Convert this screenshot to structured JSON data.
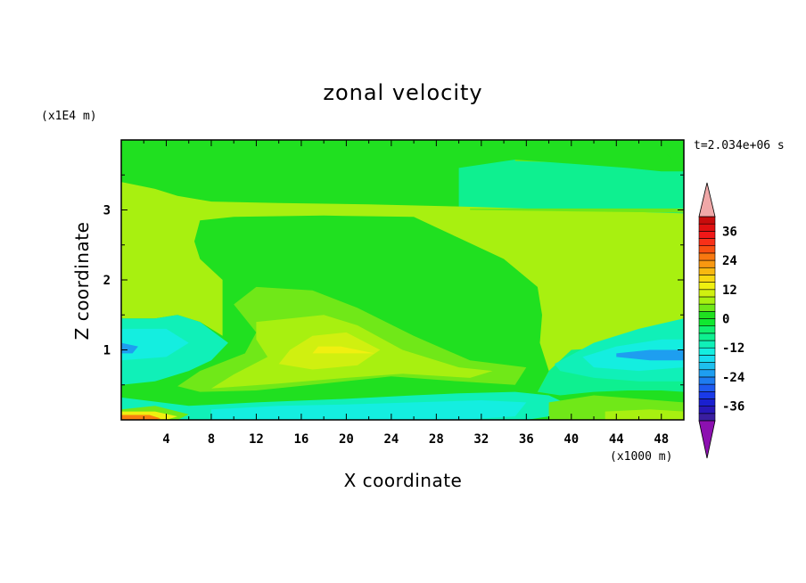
{
  "chart_data": {
    "type": "heatmap",
    "title": "zonal velocity",
    "xlabel": "X coordinate",
    "ylabel": "Z coordinate",
    "x_unit_label": "(x1000 m)",
    "y_unit_label": "(x1E4 m)",
    "time_label": "t=2.034e+06 s",
    "xlim": [
      0,
      50
    ],
    "ylim": [
      0,
      4
    ],
    "x_ticks": [
      4,
      8,
      12,
      16,
      20,
      24,
      28,
      32,
      36,
      40,
      44,
      48
    ],
    "y_ticks": [
      1,
      2,
      3
    ],
    "colorbar": {
      "levels": [
        -42,
        -39,
        -36,
        -33,
        -30,
        -27,
        -24,
        -21,
        -18,
        -15,
        -12,
        -9,
        -6,
        -3,
        0,
        3,
        6,
        9,
        12,
        15,
        18,
        21,
        24,
        27,
        30,
        33,
        36,
        39,
        42
      ],
      "colors": [
        "#3a1ea0",
        "#2818b8",
        "#1a20d0",
        "#1a3ae8",
        "#1e5af0",
        "#1e7cf0",
        "#1e9ef0",
        "#1ec0ee",
        "#18dcf0",
        "#14eee0",
        "#10f0b8",
        "#0ef090",
        "#10f070",
        "#10e830",
        "#20e020",
        "#70e818",
        "#a8f010",
        "#d0f010",
        "#f0f010",
        "#f8d810",
        "#f8b810",
        "#f89810",
        "#f87810",
        "#f85010",
        "#f83018",
        "#f01818",
        "#e01010",
        "#c80c0c"
      ],
      "labels": [
        "-36",
        "-24",
        "-12",
        "0",
        "12",
        "24",
        "36"
      ],
      "label_values": [
        -36,
        -24,
        -12,
        0,
        12,
        24,
        36
      ],
      "under_color": "#8c10b0",
      "over_color": "#f0a8a8"
    },
    "field_regions": [
      {
        "level": 2,
        "polygon": [
          [
            0,
            3.4
          ],
          [
            4,
            3.3
          ],
          [
            6,
            3.2
          ],
          [
            10,
            3.15
          ],
          [
            20,
            3.12
          ],
          [
            30,
            3.05
          ],
          [
            40,
            3.0
          ],
          [
            50,
            2.95
          ],
          [
            50,
            0.95
          ],
          [
            45,
            1.05
          ],
          [
            40,
            1.0
          ],
          [
            38,
            0.7
          ],
          [
            37,
            0.4
          ],
          [
            40,
            0.32
          ],
          [
            44,
            0.3
          ],
          [
            48,
            0.3
          ],
          [
            50,
            0.25
          ],
          [
            50,
            0
          ],
          [
            0,
            0
          ]
        ]
      },
      {
        "level": 1,
        "polygon": [
          [
            35,
            3.7
          ],
          [
            45,
            3.65
          ],
          [
            50,
            3.6
          ],
          [
            50,
            4
          ],
          [
            35,
            4
          ]
        ]
      },
      {
        "level": 1,
        "polygon": [
          [
            31,
            3.0
          ],
          [
            40,
            2.98
          ],
          [
            50,
            2.96
          ],
          [
            50,
            3.02
          ],
          [
            40,
            3.02
          ],
          [
            31,
            3.02
          ]
        ]
      },
      {
        "level": 0,
        "polygon": [
          [
            0,
            3.4
          ],
          [
            3,
            3.3
          ],
          [
            5,
            3.2
          ],
          [
            8,
            3.12
          ],
          [
            14,
            3.1
          ],
          [
            22,
            3.08
          ],
          [
            30,
            3.05
          ],
          [
            30,
            3.6
          ],
          [
            35,
            3.72
          ],
          [
            45,
            3.6
          ],
          [
            48,
            3.55
          ],
          [
            50,
            3.55
          ],
          [
            50,
            4
          ],
          [
            0,
            4
          ]
        ]
      },
      {
        "level": 0,
        "polygon": [
          [
            7,
            2.85
          ],
          [
            10,
            2.9
          ],
          [
            18,
            2.92
          ],
          [
            26,
            2.9
          ],
          [
            30,
            2.6
          ],
          [
            34,
            2.3
          ],
          [
            37,
            1.9
          ],
          [
            37.4,
            1.5
          ],
          [
            37.2,
            1.1
          ],
          [
            38,
            0.7
          ],
          [
            37,
            0.4
          ],
          [
            39,
            0.35
          ],
          [
            42,
            0.4
          ],
          [
            45,
            0.42
          ],
          [
            48,
            0.42
          ],
          [
            50,
            0.4
          ],
          [
            50,
            0
          ],
          [
            0,
            0
          ],
          [
            0,
            1.45
          ],
          [
            3,
            1.45
          ],
          [
            5,
            1.5
          ],
          [
            7,
            1.4
          ],
          [
            9,
            1.2
          ],
          [
            9,
            1.6
          ],
          [
            9,
            2.0
          ],
          [
            7,
            2.3
          ],
          [
            6.5,
            2.55
          ]
        ]
      },
      {
        "level": 0,
        "polygon": [
          [
            48.5,
            3.8
          ],
          [
            50,
            3.55
          ],
          [
            50,
            4
          ],
          [
            48.5,
            4
          ]
        ]
      },
      {
        "level": -1,
        "polygon": [
          [
            0,
            1.45
          ],
          [
            3,
            1.45
          ],
          [
            5,
            1.5
          ],
          [
            7,
            1.4
          ],
          [
            9.5,
            1.1
          ],
          [
            8,
            0.85
          ],
          [
            6,
            0.7
          ],
          [
            3,
            0.55
          ],
          [
            0,
            0.5
          ]
        ]
      },
      {
        "level": -2,
        "polygon": [
          [
            0,
            1.3
          ],
          [
            4,
            1.3
          ],
          [
            6,
            1.1
          ],
          [
            4,
            0.9
          ],
          [
            0,
            0.85
          ]
        ]
      },
      {
        "level": -3,
        "polygon": [
          [
            0,
            1.1
          ],
          [
            1.5,
            1.05
          ],
          [
            1,
            0.95
          ],
          [
            0,
            0.95
          ]
        ]
      },
      {
        "level": -1,
        "polygon": [
          [
            38.5,
            0.8
          ],
          [
            42,
            1.1
          ],
          [
            46,
            1.3
          ],
          [
            50,
            1.45
          ],
          [
            50,
            0.55
          ],
          [
            46,
            0.55
          ],
          [
            42,
            0.6
          ],
          [
            39,
            0.7
          ]
        ]
      },
      {
        "level": -2,
        "polygon": [
          [
            41,
            0.9
          ],
          [
            44,
            1.05
          ],
          [
            48,
            1.15
          ],
          [
            50,
            1.15
          ],
          [
            50,
            0.75
          ],
          [
            46,
            0.7
          ],
          [
            42,
            0.75
          ]
        ]
      },
      {
        "level": -3,
        "polygon": [
          [
            44,
            0.95
          ],
          [
            47,
            1.0
          ],
          [
            50,
            1.0
          ],
          [
            50,
            0.85
          ],
          [
            47,
            0.85
          ],
          [
            44,
            0.9
          ]
        ]
      },
      {
        "level": -1,
        "polygon": [
          [
            0,
            0.32
          ],
          [
            6,
            0.2
          ],
          [
            12,
            0.25
          ],
          [
            20,
            0.3
          ],
          [
            26,
            0.35
          ],
          [
            30,
            0.38
          ],
          [
            35,
            0.4
          ],
          [
            38,
            0.35
          ],
          [
            40,
            0.2
          ],
          [
            38,
            0.05
          ],
          [
            36,
            0
          ],
          [
            6,
            0
          ],
          [
            0,
            0.05
          ]
        ]
      },
      {
        "level": -2,
        "polygon": [
          [
            8,
            0.15
          ],
          [
            14,
            0.2
          ],
          [
            20,
            0.22
          ],
          [
            26,
            0.25
          ],
          [
            32,
            0.28
          ],
          [
            36,
            0.25
          ],
          [
            35,
            0.05
          ],
          [
            30,
            0
          ],
          [
            8,
            0
          ]
        ]
      },
      {
        "level": 1,
        "polygon": [
          [
            10,
            1.65
          ],
          [
            12,
            1.9
          ],
          [
            17,
            1.85
          ],
          [
            21,
            1.6
          ],
          [
            26,
            1.2
          ],
          [
            31,
            0.85
          ],
          [
            36,
            0.75
          ],
          [
            35,
            0.5
          ],
          [
            30,
            0.55
          ],
          [
            24,
            0.62
          ],
          [
            18,
            0.52
          ],
          [
            12,
            0.42
          ],
          [
            7,
            0.4
          ],
          [
            5,
            0.48
          ],
          [
            7,
            0.7
          ],
          [
            11,
            0.95
          ],
          [
            12,
            1.25
          ]
        ]
      },
      {
        "level": 2,
        "polygon": [
          [
            12,
            1.4
          ],
          [
            15,
            1.45
          ],
          [
            18,
            1.5
          ],
          [
            21,
            1.35
          ],
          [
            25,
            1.0
          ],
          [
            30,
            0.75
          ],
          [
            33,
            0.7
          ],
          [
            31,
            0.6
          ],
          [
            25,
            0.66
          ],
          [
            20,
            0.6
          ],
          [
            14,
            0.52
          ],
          [
            8,
            0.45
          ],
          [
            10,
            0.65
          ],
          [
            13,
            0.9
          ],
          [
            12,
            1.15
          ]
        ]
      },
      {
        "level": 3,
        "polygon": [
          [
            17,
            1.2
          ],
          [
            20,
            1.25
          ],
          [
            23,
            1.0
          ],
          [
            21,
            0.78
          ],
          [
            17,
            0.72
          ],
          [
            14,
            0.8
          ],
          [
            15,
            1.0
          ]
        ]
      },
      {
        "level": 4,
        "polygon": [
          [
            22.5,
            0.95
          ],
          [
            17,
            0.95
          ],
          [
            17.5,
            1.05
          ],
          [
            19.5,
            1.05
          ]
        ]
      },
      {
        "level": 1,
        "polygon": [
          [
            38,
            0.25
          ],
          [
            42,
            0.35
          ],
          [
            46,
            0.3
          ],
          [
            50,
            0.25
          ],
          [
            50,
            0
          ],
          [
            38,
            0
          ]
        ]
      },
      {
        "level": 2,
        "polygon": [
          [
            43,
            0.12
          ],
          [
            47,
            0.15
          ],
          [
            50,
            0.12
          ],
          [
            50,
            0
          ],
          [
            43,
            0
          ]
        ]
      },
      {
        "level": 1,
        "polygon": [
          [
            0,
            0.15
          ],
          [
            3,
            0.2
          ],
          [
            6,
            0.08
          ],
          [
            5,
            0
          ],
          [
            0,
            0
          ]
        ]
      },
      {
        "level": 4,
        "polygon": [
          [
            0,
            0.12
          ],
          [
            3,
            0.12
          ],
          [
            5,
            0.05
          ],
          [
            4,
            0
          ],
          [
            0,
            0
          ]
        ]
      },
      {
        "level": 6,
        "polygon": [
          [
            0,
            0.07
          ],
          [
            2.5,
            0.07
          ],
          [
            3.5,
            0.02
          ],
          [
            3,
            0
          ],
          [
            0,
            0
          ]
        ]
      }
    ],
    "level_colors": {
      "-3": "#1e9ef0",
      "-2": "#14eee0",
      "-1": "#10f0b8",
      "0": "#20e020",
      "1": "#70e818",
      "2": "#a8f010",
      "3": "#d0f010",
      "4": "#f0f010",
      "6": "#f88010",
      "base": "#0ef090"
    }
  }
}
